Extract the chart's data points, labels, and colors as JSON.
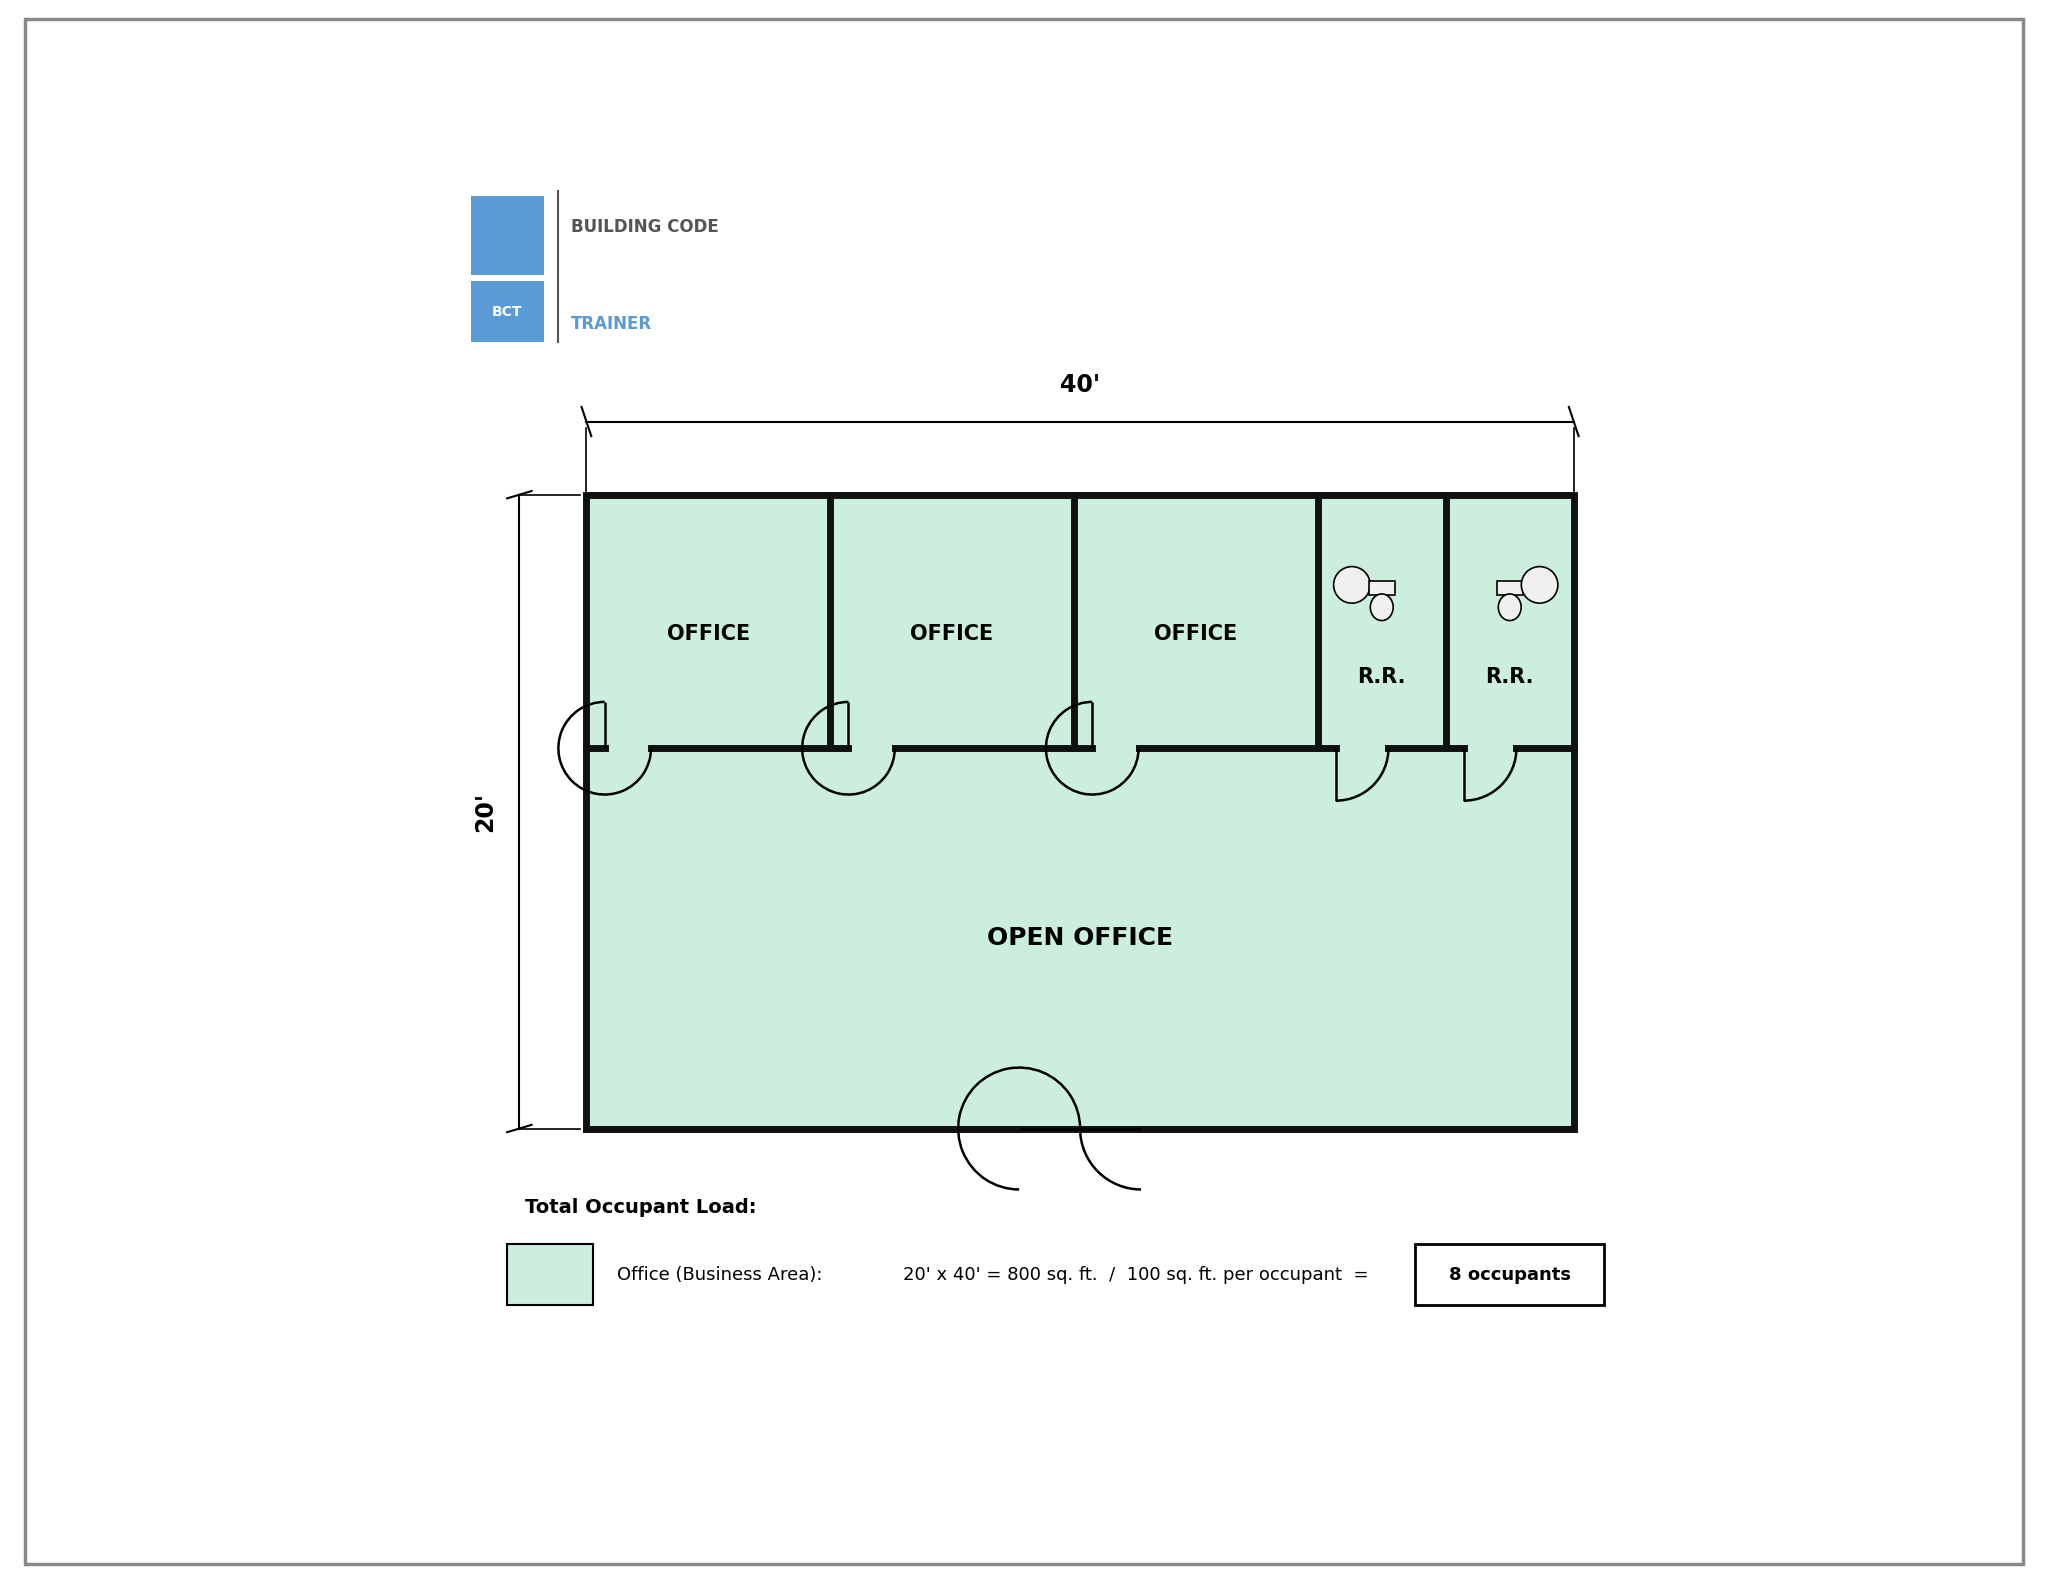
{
  "bg_color": "#ffffff",
  "border_color": "#888888",
  "floor_fill": "#cceedd",
  "wall_color": "#111111",
  "wall_lw": 5.0,
  "dim_40": "40'",
  "dim_20": "20'",
  "label_office1": "OFFICE",
  "label_office2": "OFFICE",
  "label_office3": "OFFICE",
  "label_rr1": "R.R.",
  "label_rr2": "R.R.",
  "label_open_office": "OPEN OFFICE",
  "legend_box_color": "#cceedd",
  "legend_text1": "Total Occupant Load:",
  "legend_text2": "Office (Business Area):",
  "legend_formula": "20' x 40' = 800 sq. ft.  /  100 sq. ft. per occupant  =",
  "legend_answer": "8 occupants",
  "bct_blue": "#5b9bd5",
  "bct_dark": "#555555"
}
